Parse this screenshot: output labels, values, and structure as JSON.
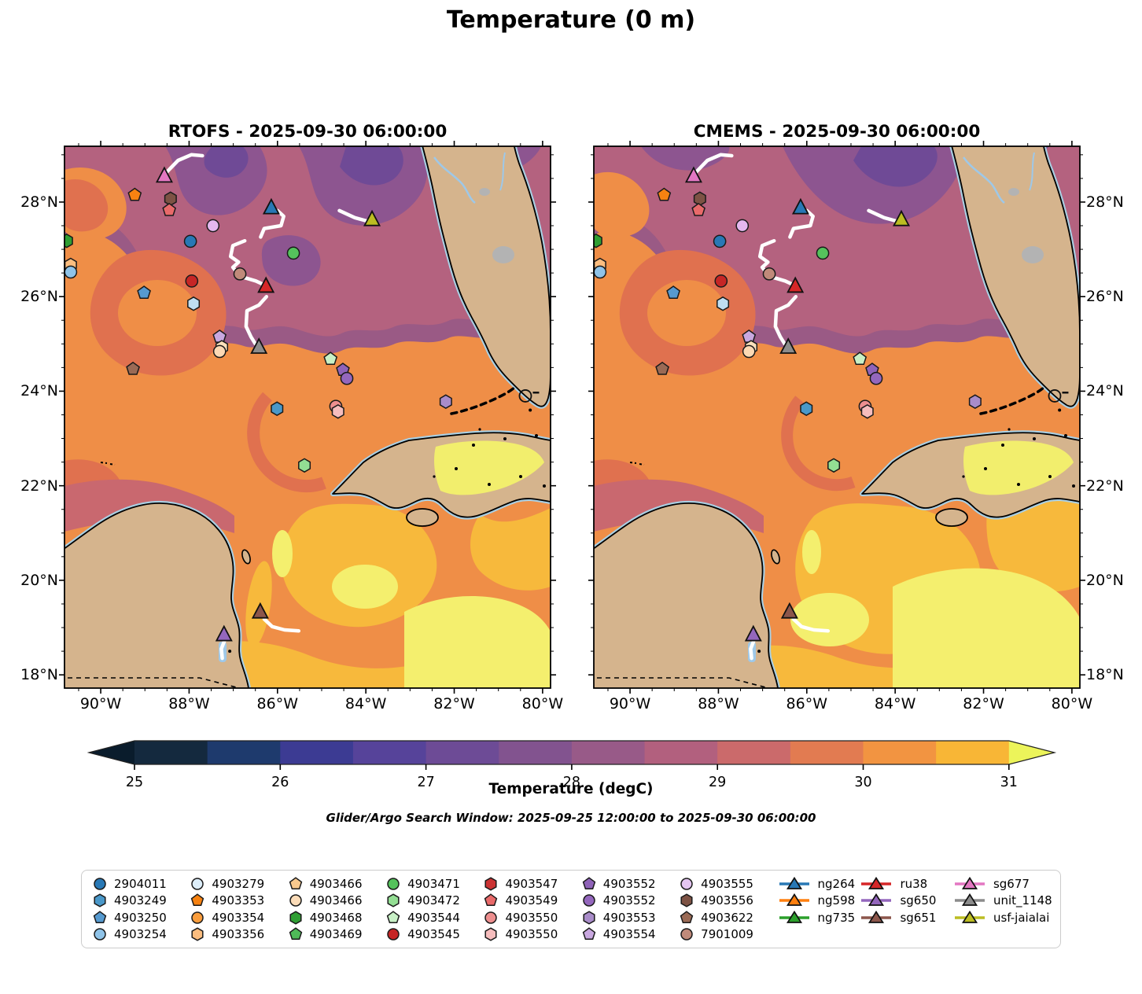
{
  "title": "Temperature (0 m)",
  "panels": [
    {
      "id": "rtofs",
      "title": "RTOFS - 2025-09-30 06:00:00"
    },
    {
      "id": "cmems",
      "title": "CMEMS - 2025-09-30 06:00:00"
    }
  ],
  "axes": {
    "x_ticks": [
      {
        "lon": -90,
        "label": "90°W"
      },
      {
        "lon": -88,
        "label": "88°W"
      },
      {
        "lon": -86,
        "label": "86°W"
      },
      {
        "lon": -84,
        "label": "84°W"
      },
      {
        "lon": -82,
        "label": "82°W"
      },
      {
        "lon": -80,
        "label": "80°W"
      }
    ],
    "y_ticks": [
      {
        "lat": 28,
        "label": "28°N"
      },
      {
        "lat": 26,
        "label": "26°N"
      },
      {
        "lat": 24,
        "label": "24°N"
      },
      {
        "lat": 22,
        "label": "22°N"
      },
      {
        "lat": 20,
        "label": "20°N"
      },
      {
        "lat": 18,
        "label": "18°N"
      }
    ],
    "lon_range": [
      -90.82,
      -79.82
    ],
    "lat_range": [
      17.72,
      29.18
    ],
    "minor_step": 0.5
  },
  "colorbar": {
    "label": "Temperature (degC)",
    "window_text": "Glider/Argo Search Window: 2025-09-25 12:00:00 to 2025-09-30 06:00:00",
    "tick_labels": [
      "25",
      "26",
      "27",
      "28",
      "29",
      "30",
      "31"
    ],
    "tick_values": [
      25,
      26,
      27,
      28,
      29,
      30,
      31
    ],
    "level_min": 25,
    "level_max": 31,
    "level_step": 0.5,
    "segment_colors": [
      "#14293e",
      "#1e3a6d",
      "#3c3b93",
      "#56439a",
      "#6d4b96",
      "#82538f",
      "#985a88",
      "#b2607e",
      "#cb6a6b",
      "#e27b51",
      "#f29441",
      "#f8b636"
    ],
    "under_color": "#0a1c2c",
    "over_color": "#ecf45a"
  },
  "chart_data": {
    "type": "heatmap",
    "variable": "Temperature (degC)",
    "depth": "0 m",
    "datetime": "2025-09-30 06:00:00",
    "models": [
      "RTOFS",
      "CMEMS"
    ],
    "temp_levels": [
      25,
      25.5,
      26,
      26.5,
      27,
      27.5,
      28,
      28.5,
      29,
      29.5,
      30,
      30.5,
      31
    ],
    "markers": [
      {
        "shape": "triangle",
        "color": "#e377c2",
        "lon": -88.56,
        "lat": 28.55,
        "name": "sg677"
      },
      {
        "shape": "pentagon",
        "color": "#f78211",
        "lon": -89.23,
        "lat": 28.15
      },
      {
        "shape": "hexagon",
        "color": "#7d5244",
        "lon": -88.42,
        "lat": 28.07
      },
      {
        "shape": "pentagon",
        "color": "#e96a6a",
        "lon": -88.45,
        "lat": 27.83
      },
      {
        "shape": "circle",
        "color": "#e5b8ef",
        "lon": -87.46,
        "lat": 27.5
      },
      {
        "shape": "triangle",
        "color": "#2878b5",
        "lon": -86.14,
        "lat": 27.88,
        "name": "ng264"
      },
      {
        "shape": "triangle",
        "color": "#bcbd22",
        "lon": -83.86,
        "lat": 27.63,
        "name": "usf-jaialai"
      },
      {
        "shape": "circle",
        "color": "#2878b5",
        "lon": -87.97,
        "lat": 27.17
      },
      {
        "shape": "circle",
        "color": "#55c25c",
        "lon": -85.64,
        "lat": 26.92
      },
      {
        "shape": "hexagon",
        "color": "#2f9e33",
        "lon": -90.77,
        "lat": 27.18
      },
      {
        "shape": "hexagon",
        "color": "#fbbd7f",
        "lon": -90.68,
        "lat": 26.67
      },
      {
        "shape": "circle",
        "color": "#8fc3e8",
        "lon": -90.68,
        "lat": 26.52
      },
      {
        "shape": "circle",
        "color": "#c08a7a",
        "lon": -86.85,
        "lat": 26.48
      },
      {
        "shape": "triangle",
        "color": "#d62728",
        "lon": -86.26,
        "lat": 26.22,
        "name": "ru38"
      },
      {
        "shape": "circle",
        "color": "#c62626",
        "lon": -87.94,
        "lat": 26.33
      },
      {
        "shape": "pentagon",
        "color": "#569ad0",
        "lon": -89.02,
        "lat": 26.08
      },
      {
        "shape": "hexagon",
        "color": "#bfdef2",
        "lon": -87.9,
        "lat": 25.85
      },
      {
        "shape": "pentagon",
        "color": "#c9a8e0",
        "lon": -87.31,
        "lat": 25.15
      },
      {
        "shape": "hexagon",
        "color": "#fbe0bb",
        "lon": -87.26,
        "lat": 24.93
      },
      {
        "shape": "circle",
        "color": "#fcd9b4",
        "lon": -87.31,
        "lat": 24.84
      },
      {
        "shape": "triangle",
        "color": "#8c8c8c",
        "lon": -86.42,
        "lat": 24.93,
        "name": "unit_1148"
      },
      {
        "shape": "pentagon",
        "color": "#9a6a55",
        "lon": -89.27,
        "lat": 24.47
      },
      {
        "shape": "pentagon",
        "color": "#c8f0c6",
        "lon": -84.8,
        "lat": 24.68
      },
      {
        "shape": "pentagon",
        "color": "#8f63b8",
        "lon": -84.52,
        "lat": 24.45
      },
      {
        "shape": "circle",
        "color": "#9467bd",
        "lon": -84.43,
        "lat": 24.27
      },
      {
        "shape": "hexagon",
        "color": "#4a98c9",
        "lon": -86.01,
        "lat": 23.63
      },
      {
        "shape": "circle",
        "color": "#ee8f8f",
        "lon": -84.68,
        "lat": 23.68
      },
      {
        "shape": "hexagon",
        "color": "#f6bdbd",
        "lon": -84.63,
        "lat": 23.57
      },
      {
        "shape": "hexagon",
        "color": "#a98cc9",
        "lon": -82.19,
        "lat": 23.78
      },
      {
        "shape": "open-circle",
        "color": "none",
        "lon": -80.39,
        "lat": 23.9
      },
      {
        "shape": "dash",
        "color": "#000000",
        "lon": -80.15,
        "lat": 23.97
      },
      {
        "shape": "hexagon",
        "color": "#93de93",
        "lon": -85.39,
        "lat": 22.43
      },
      {
        "shape": "triangle",
        "color": "#8c564b",
        "lon": -86.39,
        "lat": 19.33,
        "name": "sg651"
      },
      {
        "shape": "triangle",
        "color": "#9467bd",
        "lon": -87.21,
        "lat": 18.85,
        "name": "sg650"
      },
      {
        "shape": "dot",
        "color": "#000000",
        "lon": -80.28,
        "lat": 23.6
      },
      {
        "shape": "dot",
        "color": "#000000",
        "lon": -87.08,
        "lat": 18.5
      }
    ],
    "tracks": [
      {
        "name": "sg677",
        "points": [
          [
            -88.52,
            28.62
          ],
          [
            -88.25,
            28.88
          ],
          [
            -87.95,
            29.0
          ],
          [
            -87.7,
            28.98
          ]
        ]
      },
      {
        "name": "ng264",
        "points": [
          [
            -86.0,
            27.82
          ],
          [
            -85.86,
            27.7
          ],
          [
            -85.92,
            27.5
          ],
          [
            -86.3,
            27.44
          ],
          [
            -86.38,
            27.26
          ]
        ]
      },
      {
        "name": "mid-loop",
        "points": [
          [
            -86.74,
            27.18
          ],
          [
            -87.01,
            27.08
          ],
          [
            -87.06,
            26.85
          ],
          [
            -86.88,
            26.73
          ],
          [
            -87.01,
            26.62
          ],
          [
            -86.85,
            26.43
          ],
          [
            -86.49,
            26.33
          ],
          [
            -86.3,
            26.25
          ]
        ]
      },
      {
        "name": "ru38-to-unit1148",
        "points": [
          [
            -86.25,
            26.0
          ],
          [
            -86.42,
            25.82
          ],
          [
            -86.69,
            25.7
          ],
          [
            -86.71,
            25.37
          ],
          [
            -86.6,
            25.15
          ],
          [
            -86.5,
            25.0
          ]
        ]
      },
      {
        "name": "usf-jaialai",
        "points": [
          [
            -84.6,
            27.82
          ],
          [
            -84.25,
            27.67
          ],
          [
            -83.98,
            27.6
          ],
          [
            -83.82,
            27.64
          ]
        ]
      },
      {
        "name": "sg651",
        "points": [
          [
            -86.3,
            19.18
          ],
          [
            -86.12,
            19.02
          ],
          [
            -85.84,
            18.95
          ],
          [
            -85.52,
            18.93
          ]
        ]
      },
      {
        "name": "sg650",
        "points": [
          [
            -87.2,
            18.72
          ],
          [
            -87.27,
            18.55
          ],
          [
            -87.25,
            18.35
          ]
        ]
      }
    ]
  },
  "legend": {
    "floats": [
      {
        "id": "2904011",
        "shape": "circle",
        "color": "#2878b5"
      },
      {
        "id": "4903249",
        "shape": "hexagon",
        "color": "#4a98c9"
      },
      {
        "id": "4903250",
        "shape": "pentagon",
        "color": "#569ad0"
      },
      {
        "id": "4903254",
        "shape": "circle",
        "color": "#8fc3e8"
      },
      {
        "id": "4903279",
        "shape": "circle",
        "color": "#ddeefa"
      },
      {
        "id": "4903353",
        "shape": "pentagon",
        "color": "#f78211"
      },
      {
        "id": "4903354",
        "shape": "circle",
        "color": "#fa9d3c"
      },
      {
        "id": "4903356",
        "shape": "hexagon",
        "color": "#fbbd7f"
      },
      {
        "id": "4903466",
        "shape": "pentagon",
        "color": "#f9c98e"
      },
      {
        "id": "4903466",
        "shape": "circle",
        "color": "#fcdcb8"
      },
      {
        "id": "4903468",
        "shape": "hexagon",
        "color": "#2f9e33"
      },
      {
        "id": "4903469",
        "shape": "pentagon",
        "color": "#4fba58"
      },
      {
        "id": "4903471",
        "shape": "circle",
        "color": "#55c25c"
      },
      {
        "id": "4903472",
        "shape": "hexagon",
        "color": "#93de93"
      },
      {
        "id": "4903544",
        "shape": "pentagon",
        "color": "#c8f0c6"
      },
      {
        "id": "4903545",
        "shape": "circle",
        "color": "#c62626"
      },
      {
        "id": "4903547",
        "shape": "hexagon",
        "color": "#cb3333"
      },
      {
        "id": "4903549",
        "shape": "pentagon",
        "color": "#e96a6a"
      },
      {
        "id": "4903550",
        "shape": "circle",
        "color": "#ee8f8f"
      },
      {
        "id": "4903550",
        "shape": "hexagon",
        "color": "#f6bdbd"
      },
      {
        "id": "4903552",
        "shape": "pentagon",
        "color": "#8f63b8"
      },
      {
        "id": "4903552",
        "shape": "circle",
        "color": "#9467bd"
      },
      {
        "id": "4903553",
        "shape": "hexagon",
        "color": "#a98cc9"
      },
      {
        "id": "4903554",
        "shape": "pentagon",
        "color": "#c9a8e0"
      },
      {
        "id": "4903555",
        "shape": "circle",
        "color": "#e5c6f2"
      },
      {
        "id": "4903556",
        "shape": "hexagon",
        "color": "#7d5244"
      },
      {
        "id": "4903622",
        "shape": "pentagon",
        "color": "#9a6a55"
      },
      {
        "id": "7901009",
        "shape": "circle",
        "color": "#c08a7a"
      }
    ],
    "gliders": [
      {
        "id": "ng264",
        "color": "#2878b5"
      },
      {
        "id": "ng598",
        "color": "#ff7f0e"
      },
      {
        "id": "ng735",
        "color": "#2ca02c"
      },
      {
        "id": "ru38",
        "color": "#d62728"
      },
      {
        "id": "sg650",
        "color": "#9467bd"
      },
      {
        "id": "sg651",
        "color": "#8c564b"
      },
      {
        "id": "sg677",
        "color": "#e377c2"
      },
      {
        "id": "unit_1148",
        "color": "#8c8c8c"
      },
      {
        "id": "usf-jaialai",
        "color": "#bcbd22"
      }
    ]
  }
}
